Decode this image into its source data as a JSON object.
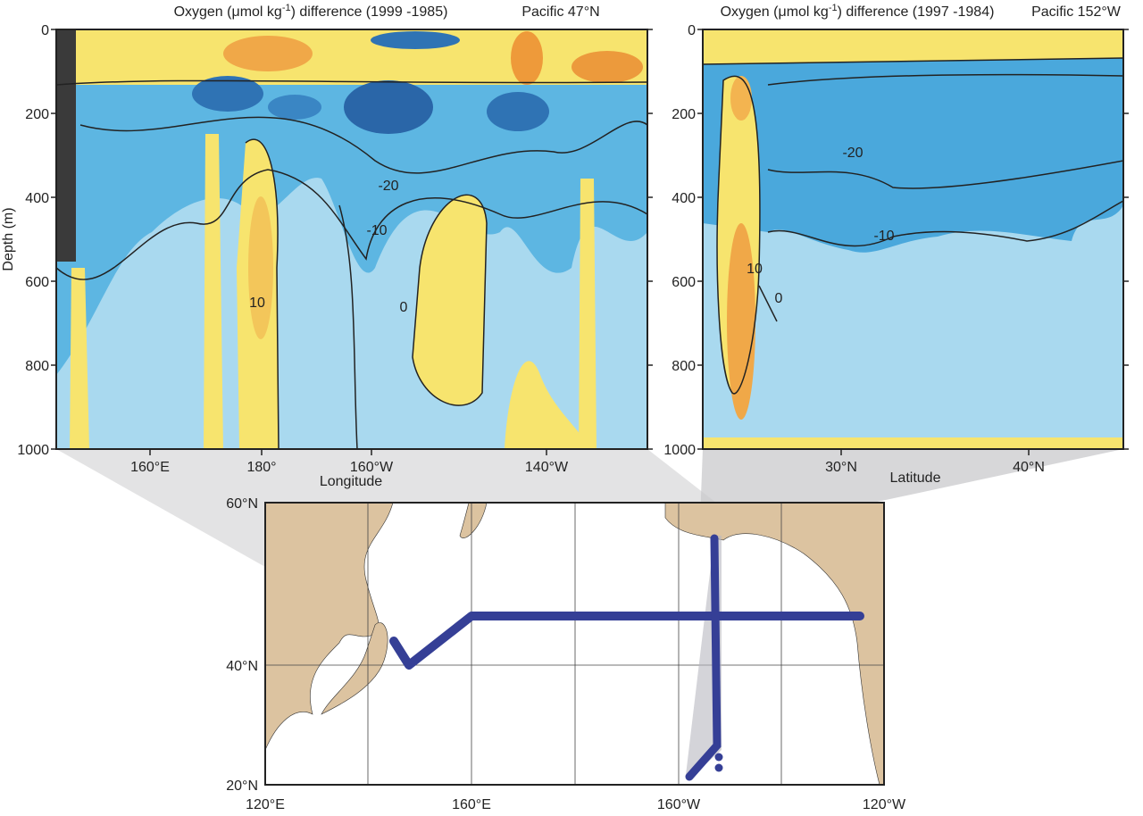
{
  "panels": [
    {
      "title": {
        "prefix": "Oxygen (μmol kg",
        "superscript": "-1",
        "suffix": ") difference (1999 -1985)"
      },
      "region": "Pacific 47°N",
      "y_axis_label": "Depth (m)",
      "y_ticks": [
        "0",
        "200",
        "400",
        "600",
        "800",
        "1000"
      ],
      "x_ticks": [
        "160°E",
        "180°",
        "160°W",
        "140°W"
      ],
      "x_axis_label": "Longitude",
      "contour_labels": [
        "-20",
        "-10",
        "10",
        "0"
      ]
    },
    {
      "title": {
        "prefix": "Oxygen (μmol kg",
        "superscript": "-1",
        "suffix": ") difference (1997 -1984)"
      },
      "region": "Pacific 152°W",
      "y_ticks": [
        "0",
        "200",
        "400",
        "600",
        "800",
        "1000"
      ],
      "x_ticks": [
        "30°N",
        "40°N"
      ],
      "x_axis_label": "Latitude",
      "contour_labels": [
        "-20",
        "-10",
        "10",
        "0"
      ]
    }
  ],
  "map": {
    "lat_ticks": [
      "60°N",
      "40°N",
      "20°N"
    ],
    "lon_ticks": [
      "120°E",
      "160°E",
      "160°W",
      "120°W"
    ]
  }
}
